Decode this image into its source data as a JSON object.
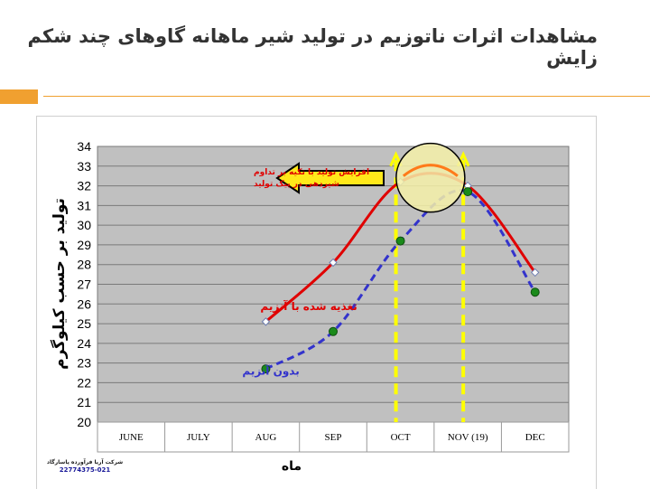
{
  "slide": {
    "title": "مشاهدات اثرات ناتوزیم در تولید شیر ماهانه گاوهای چند شکم زایش",
    "footer_company": "شرکت آریا فرآورده پاسارگاد",
    "footer_phone": "22774375-021",
    "colors": {
      "accent": "#f0a030",
      "plot_bg": "#c0c0c0"
    }
  },
  "chart_data": {
    "type": "line",
    "title": "",
    "xlabel": "ماه",
    "ylabel": "تولید بر حسب کیلوگرم",
    "categories": [
      "JUNE",
      "JULY",
      "AUG",
      "SEP",
      "OCT",
      "NOV (19)",
      "DEC"
    ],
    "ylim": [
      20,
      34
    ],
    "yticks": [
      20,
      21,
      22,
      23,
      24,
      25,
      26,
      27,
      28,
      29,
      30,
      31,
      32,
      33,
      34
    ],
    "grid": true,
    "series": [
      {
        "name": "تغذیه شده با آنزیم",
        "color": "#e00000",
        "dash": "solid",
        "marker": "diamond",
        "points": [
          {
            "category": "AUG",
            "value": 25.1
          },
          {
            "category": "SEP",
            "value": 28.1
          },
          {
            "category": "OCT",
            "value": 32.2
          },
          {
            "category": "NOV (19)",
            "value": 32.0
          },
          {
            "category": "DEC",
            "value": 27.6
          }
        ]
      },
      {
        "name": "بدون آنزیم",
        "color": "#3333cc",
        "dash": "dashed",
        "marker": "circle",
        "points": [
          {
            "category": "AUG",
            "value": 22.7
          },
          {
            "category": "SEP",
            "value": 24.6
          },
          {
            "category": "OCT",
            "value": 29.2
          },
          {
            "category": "NOV (19)",
            "value": 31.7
          },
          {
            "category": "DEC",
            "value": 26.6
          }
        ]
      }
    ],
    "annotations": {
      "arrow_text": "افزایش تولید با تکیه بر تداوم شیردهی در پیک تولید",
      "peak_markers": [
        "OCT",
        "NOV (19)"
      ],
      "peak_range": [
        32,
        33
      ]
    }
  }
}
